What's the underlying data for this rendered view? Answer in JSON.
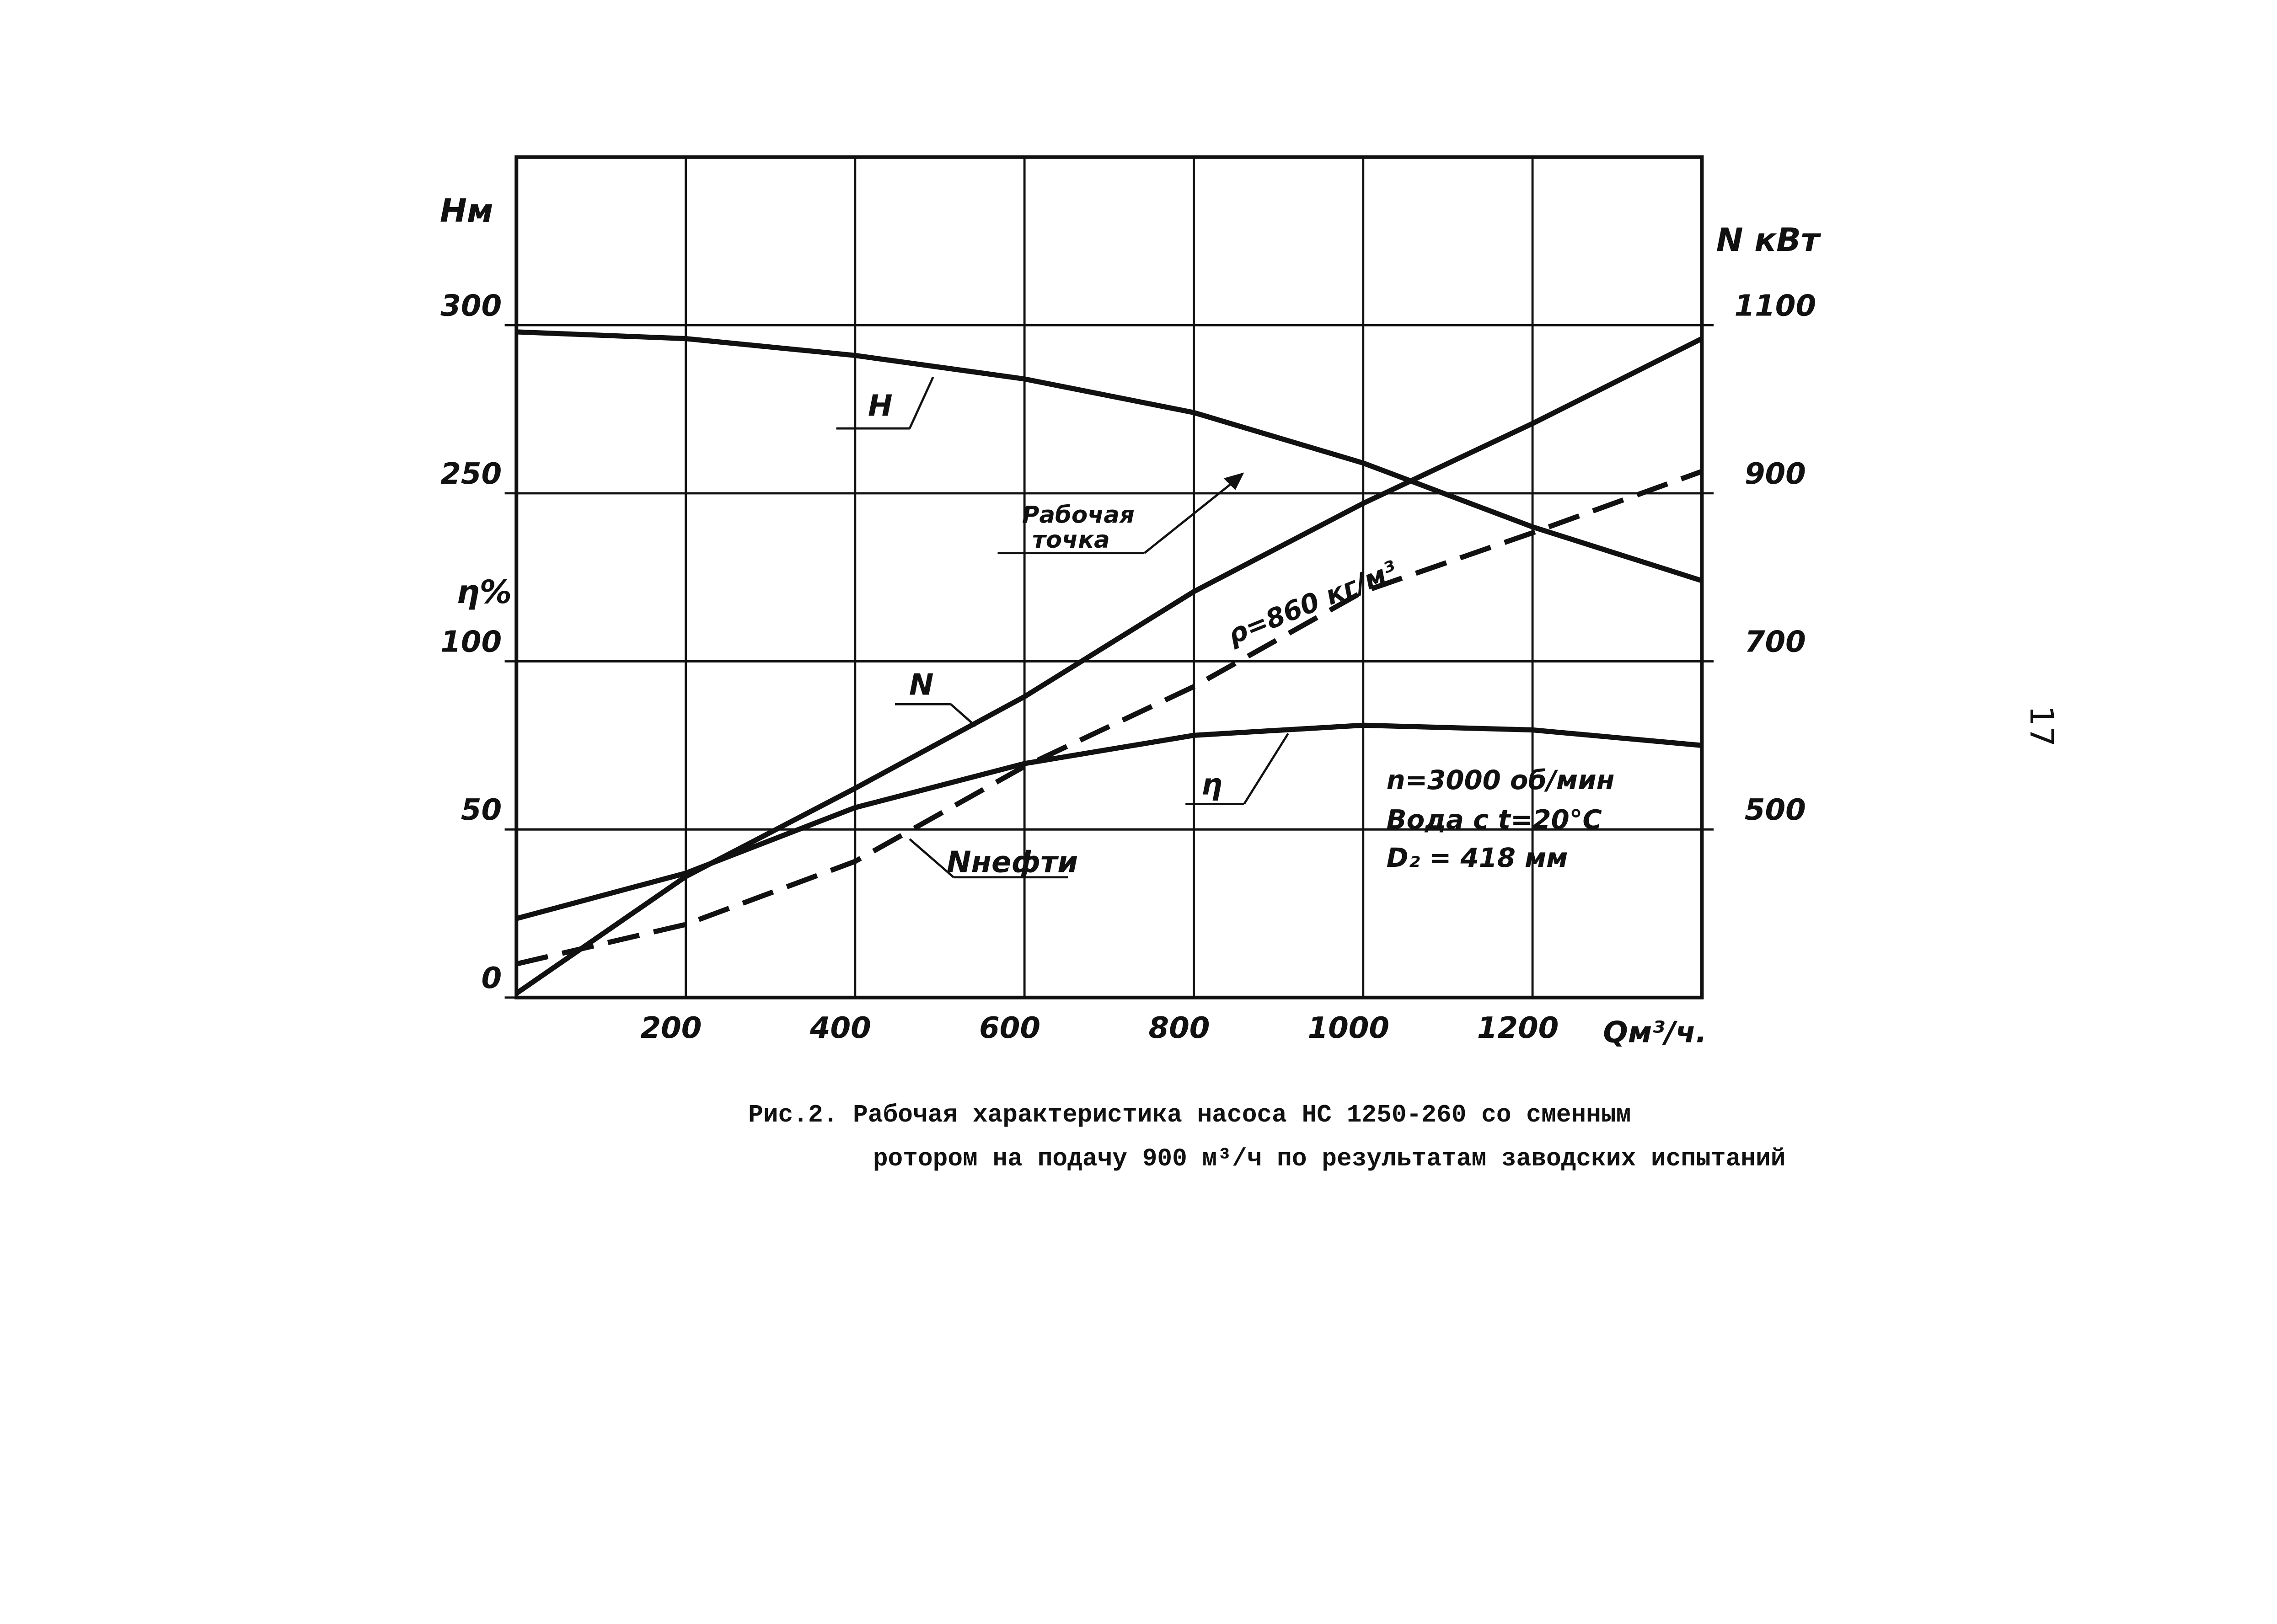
{
  "chart_data": {
    "type": "line",
    "x_label": "Qм³/ч.",
    "x": [
      0,
      200,
      400,
      600,
      800,
      1000,
      1200,
      1400
    ],
    "xlim": [
      0,
      1400
    ],
    "xticks": [
      200,
      400,
      600,
      800,
      1000,
      1200
    ],
    "y_label": "Hм",
    "ylim": [
      100,
      350
    ],
    "yticks": [
      250,
      300
    ],
    "y2_label": "N кВт",
    "y2lim": [
      300,
      1300
    ],
    "y2ticks": [
      500,
      700,
      900,
      1100
    ],
    "y3_label": "η%",
    "y3lim": [
      0,
      250
    ],
    "y3ticks": [
      0,
      50,
      100
    ],
    "grid": true,
    "series": [
      {
        "name": "H",
        "axis": "y",
        "color": "#111",
        "values": [
          298,
          296,
          291,
          284,
          274,
          259,
          240,
          224
        ]
      },
      {
        "name": "N",
        "axis": "y2",
        "color": "#111",
        "values": [
          305,
          444,
          549,
          658,
          783,
          888,
          983,
          1084
        ]
      },
      {
        "name": "Nнефти",
        "axis": "y2",
        "color": "#111",
        "dashed": true,
        "values": [
          340,
          387,
          462,
          575,
          670,
          783,
          853,
          926
        ]
      },
      {
        "name": "η",
        "axis": "y3",
        "color": "#111",
        "values": [
          23.5,
          37,
          56.5,
          69.6,
          78,
          81,
          79.6,
          75
        ]
      }
    ],
    "annotations": [
      "Рабочая",
      "точка",
      "ρ=860 кг/м³",
      "n=3000 об/мин",
      "Вода с t=20°C",
      "D₂ = 418 мм"
    ],
    "caption": [
      "Рис.2. Рабочая характеристика насоса НС 1250-260 со сменным",
      "ротором на подачу 900 м³/ч по результатам заводских испытаний"
    ],
    "page_number": "17"
  }
}
